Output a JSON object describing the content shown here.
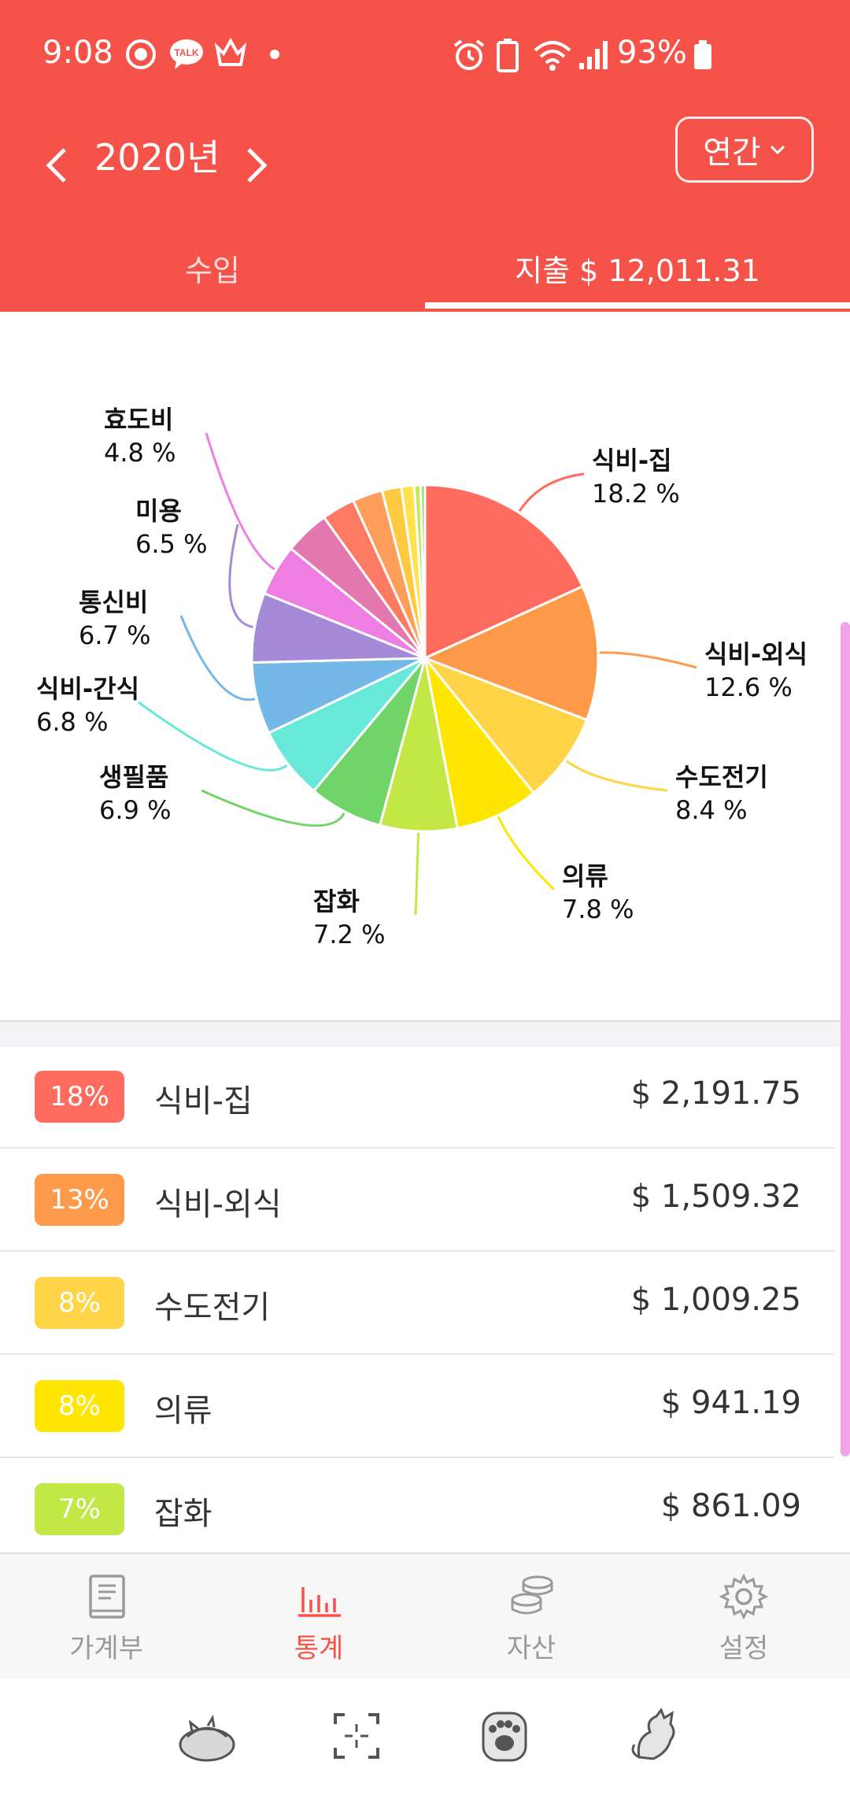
{
  "status_bar": {
    "time": "9:08",
    "battery": "93%",
    "icons": [
      "alarm-icon",
      "battery-saver-icon",
      "wifi-icon",
      "signal-icon"
    ],
    "left_icons": [
      "app-notification-icon",
      "kakaotalk-icon",
      "crown-icon"
    ],
    "talk_label": "TALK"
  },
  "header": {
    "year": "2020년",
    "period": "연간"
  },
  "tabs": {
    "income": "수입",
    "expense": "지출  $ 12,011.31"
  },
  "chart_data": {
    "type": "pie",
    "slices": [
      {
        "name": "식비-집",
        "percent": 18.2,
        "label": "18.2 %",
        "color": "#FF6B5E"
      },
      {
        "name": "식비-외식",
        "percent": 12.6,
        "label": "12.6 %",
        "color": "#FF9A4B"
      },
      {
        "name": "수도전기",
        "percent": 8.4,
        "label": "8.4 %",
        "color": "#FFD447"
      },
      {
        "name": "의류",
        "percent": 7.8,
        "label": "7.8 %",
        "color": "#FFE600"
      },
      {
        "name": "잡화",
        "percent": 7.2,
        "label": "7.2 %",
        "color": "#C3E845"
      },
      {
        "name": "생필품",
        "percent": 6.9,
        "label": "6.9 %",
        "color": "#70D468"
      },
      {
        "name": "식비-간식",
        "percent": 6.8,
        "label": "6.8 %",
        "color": "#67E8D8"
      },
      {
        "name": "통신비",
        "percent": 6.7,
        "label": "6.7 %",
        "color": "#74B8E8"
      },
      {
        "name": "미용",
        "percent": 6.5,
        "label": "6.5 %",
        "color": "#A58AD8"
      },
      {
        "name": "효도비",
        "percent": 4.8,
        "label": "4.8 %",
        "color": "#EE7EE2"
      },
      {
        "name": "",
        "percent": 4.2,
        "label": "",
        "color": "#E377B0"
      },
      {
        "name": "",
        "percent": 3.1,
        "label": "",
        "color": "#FF7A63"
      },
      {
        "name": "",
        "percent": 2.8,
        "label": "",
        "color": "#FF9E5A"
      },
      {
        "name": "",
        "percent": 1.8,
        "label": "",
        "color": "#FFC940"
      },
      {
        "name": "",
        "percent": 1.2,
        "label": "",
        "color": "#FFE24C"
      },
      {
        "name": "",
        "percent": 0.6,
        "label": "",
        "color": "#C6E85A"
      },
      {
        "name": "",
        "percent": 0.4,
        "label": "",
        "color": "#8FDA6D"
      }
    ]
  },
  "list": [
    {
      "badge": "18%",
      "category": "식비-집",
      "amount": "$ 2,191.75",
      "color": "#FF6B5E"
    },
    {
      "badge": "13%",
      "category": "식비-외식",
      "amount": "$ 1,509.32",
      "color": "#FF9A4B"
    },
    {
      "badge": "8%",
      "category": "수도전기",
      "amount": "$ 1,009.25",
      "color": "#FFD447"
    },
    {
      "badge": "8%",
      "category": "의류",
      "amount": "$ 941.19",
      "color": "#FFE600"
    },
    {
      "badge": "7%",
      "category": "잡화",
      "amount": "$ 861.09",
      "color": "#C3E845"
    }
  ],
  "nav": [
    {
      "label": "가계부",
      "icon": "book-icon"
    },
    {
      "label": "통계",
      "icon": "chart-icon",
      "active": true
    },
    {
      "label": "자산",
      "icon": "coins-icon"
    },
    {
      "label": "설정",
      "icon": "gear-icon"
    }
  ],
  "bottom_bar_icons": [
    "sleeping-cat-icon",
    "scan-icon",
    "paw-icon",
    "cat-icon"
  ]
}
